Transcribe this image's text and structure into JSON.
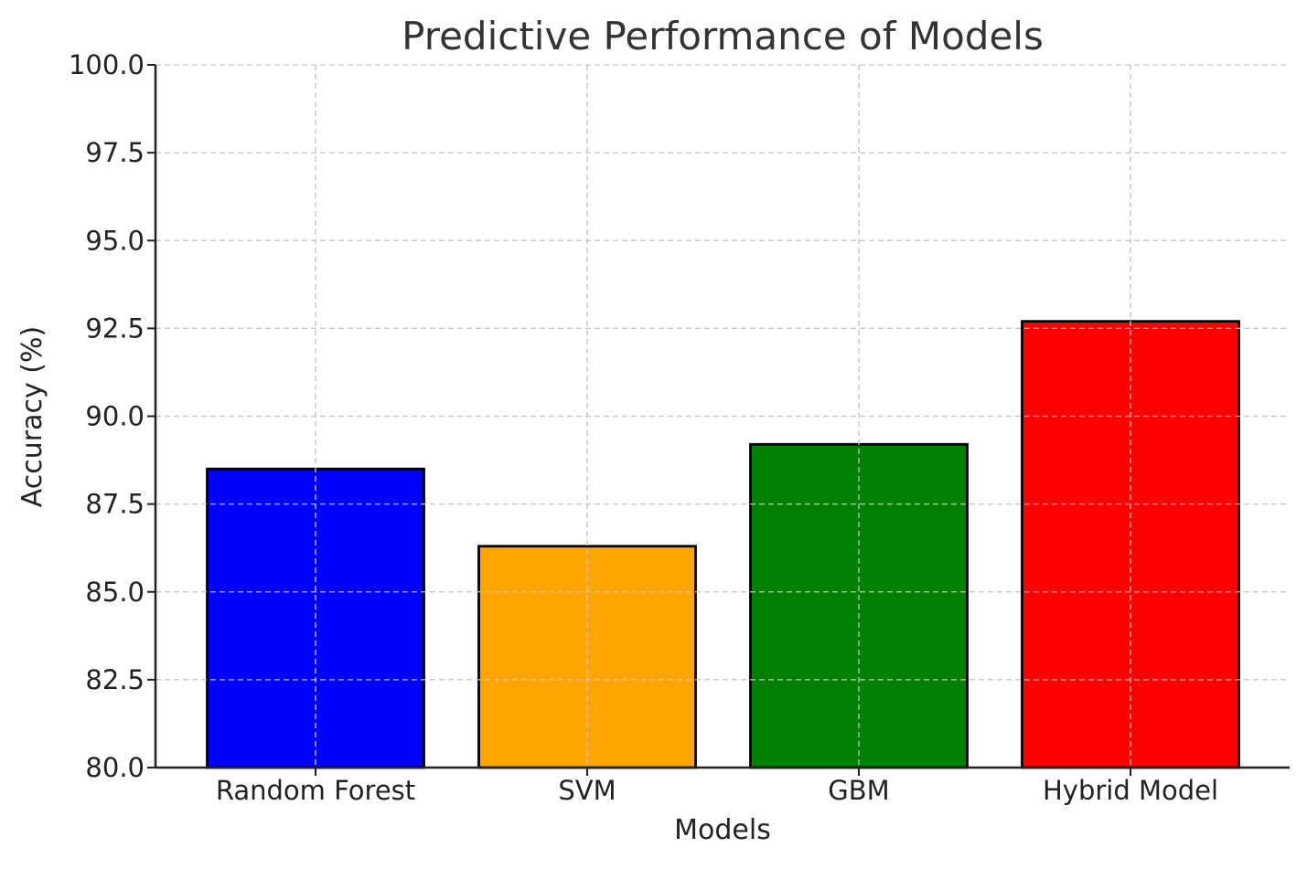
{
  "chart_data": {
    "type": "bar",
    "title": "Predictive Performance of Models",
    "xlabel": "Models",
    "ylabel": "Accuracy (%)",
    "categories": [
      "Random Forest",
      "SVM",
      "GBM",
      "Hybrid Model"
    ],
    "values": [
      88.5,
      86.3,
      89.2,
      92.7
    ],
    "colors": [
      "#0000ff",
      "#ffa500",
      "#008000",
      "#ff0000"
    ],
    "ylim": [
      80.0,
      100.0
    ],
    "yticks": [
      "80.0",
      "82.5",
      "85.0",
      "87.5",
      "90.0",
      "92.5",
      "95.0",
      "97.5",
      "100.0"
    ],
    "grid": true,
    "legend": "none"
  }
}
